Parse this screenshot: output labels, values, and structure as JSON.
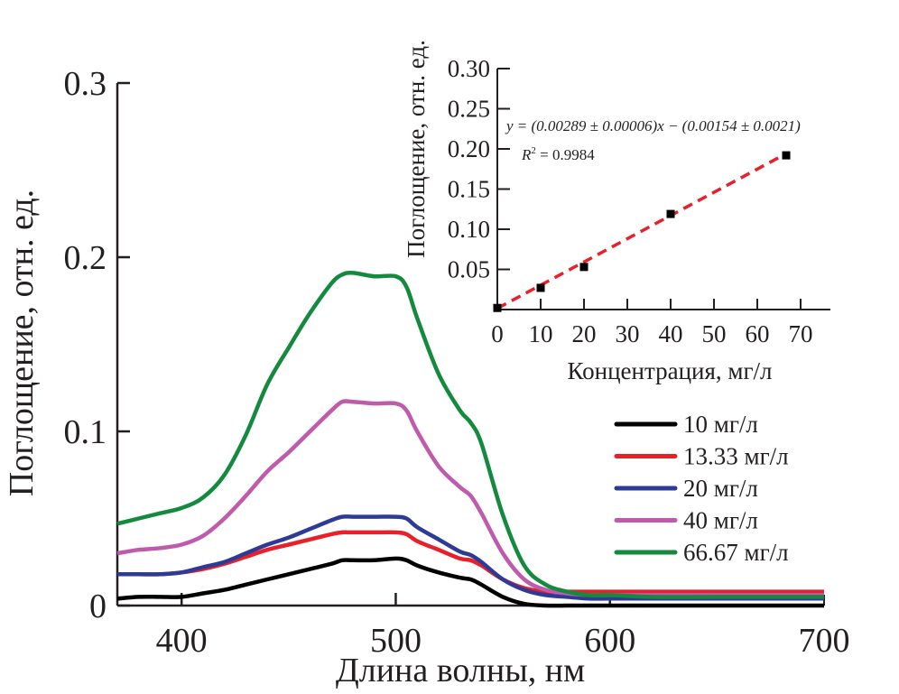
{
  "chart_data": [
    {
      "type": "line",
      "name": "main-spectra",
      "title": "",
      "xlabel": "Длина волны, нм",
      "ylabel": "Поглощение, отн. ед.",
      "xlim": [
        370,
        700
      ],
      "ylim": [
        0,
        0.3
      ],
      "xticks": [
        400,
        500,
        600,
        700
      ],
      "xtick_labels": [
        "400",
        "500",
        "600",
        "700"
      ],
      "yticks": [
        0,
        0.1,
        0.2,
        0.3
      ],
      "ytick_labels": [
        "0",
        "0.1",
        "0.2",
        "0.3"
      ],
      "grid": false,
      "legend_position": "right-middle",
      "x": [
        370,
        380,
        390,
        400,
        410,
        420,
        430,
        440,
        450,
        460,
        470,
        475,
        480,
        490,
        500,
        505,
        510,
        520,
        530,
        535,
        540,
        550,
        560,
        570,
        580,
        590,
        600,
        620,
        650,
        700
      ],
      "series": [
        {
          "name": "10 мг/л",
          "color": "#000000",
          "values": [
            0.004,
            0.005,
            0.005,
            0.005,
            0.007,
            0.009,
            0.012,
            0.015,
            0.018,
            0.021,
            0.024,
            0.026,
            0.026,
            0.026,
            0.027,
            0.026,
            0.023,
            0.019,
            0.016,
            0.015,
            0.012,
            0.005,
            0.001,
            0.0,
            0.0,
            0.0,
            0.0,
            0.0,
            0.0,
            0.0
          ]
        },
        {
          "name": "13.33 мг/л",
          "color": "#e8202a",
          "values": [
            0.018,
            0.018,
            0.018,
            0.019,
            0.021,
            0.024,
            0.028,
            0.032,
            0.035,
            0.038,
            0.041,
            0.042,
            0.042,
            0.042,
            0.042,
            0.041,
            0.037,
            0.032,
            0.027,
            0.026,
            0.023,
            0.015,
            0.01,
            0.008,
            0.008,
            0.008,
            0.008,
            0.008,
            0.008,
            0.008
          ]
        },
        {
          "name": "20 мг/л",
          "color": "#2e3b96",
          "values": [
            0.018,
            0.018,
            0.018,
            0.019,
            0.022,
            0.025,
            0.03,
            0.035,
            0.039,
            0.044,
            0.049,
            0.051,
            0.051,
            0.051,
            0.051,
            0.05,
            0.045,
            0.038,
            0.031,
            0.029,
            0.025,
            0.015,
            0.009,
            0.006,
            0.005,
            0.004,
            0.004,
            0.004,
            0.004,
            0.004
          ]
        },
        {
          "name": "40 мг/л",
          "color": "#c05aac",
          "values": [
            0.03,
            0.032,
            0.033,
            0.035,
            0.04,
            0.05,
            0.063,
            0.077,
            0.088,
            0.1,
            0.112,
            0.117,
            0.117,
            0.116,
            0.116,
            0.112,
            0.1,
            0.08,
            0.068,
            0.063,
            0.053,
            0.03,
            0.015,
            0.009,
            0.007,
            0.006,
            0.006,
            0.006,
            0.006,
            0.006
          ]
        },
        {
          "name": "66.67 мг/л",
          "color": "#138a3e",
          "values": [
            0.047,
            0.05,
            0.053,
            0.056,
            0.062,
            0.075,
            0.098,
            0.127,
            0.148,
            0.168,
            0.185,
            0.19,
            0.191,
            0.189,
            0.189,
            0.183,
            0.165,
            0.133,
            0.112,
            0.105,
            0.093,
            0.052,
            0.023,
            0.012,
            0.008,
            0.006,
            0.006,
            0.005,
            0.005,
            0.005
          ]
        }
      ]
    },
    {
      "type": "scatter",
      "name": "inset-calibration",
      "title": "",
      "xlabel": "Концентрация, мг/л",
      "ylabel": "Поглощение, отн. ед.",
      "xlim": [
        0,
        75
      ],
      "ylim": [
        0,
        0.3
      ],
      "xticks": [
        0,
        10,
        20,
        30,
        40,
        50,
        60,
        70
      ],
      "xtick_labels": [
        "0",
        "10",
        "20",
        "30",
        "40",
        "50",
        "60",
        "70"
      ],
      "yticks": [
        0.05,
        0.1,
        0.15,
        0.2,
        0.25,
        0.3
      ],
      "ytick_labels": [
        "0.05",
        "0.10",
        "0.15",
        "0.20",
        "0.25",
        "0.30"
      ],
      "grid": false,
      "points": {
        "x": [
          0,
          10,
          20,
          40,
          66.67
        ],
        "y": [
          0.002,
          0.027,
          0.053,
          0.119,
          0.192
        ],
        "color": "#000000"
      },
      "fit": {
        "slope": 0.00289,
        "intercept": -0.00154,
        "x_range": [
          0,
          66.67
        ],
        "color": "#e8202a",
        "style": "dashed"
      },
      "annotations": {
        "equation": "y = (0.00289 ± 0.00006)x − (0.00154 ± 0.0021)",
        "r2_label": "R",
        "r2_sup": "2",
        "r2_value": " = 0.9984"
      }
    }
  ]
}
